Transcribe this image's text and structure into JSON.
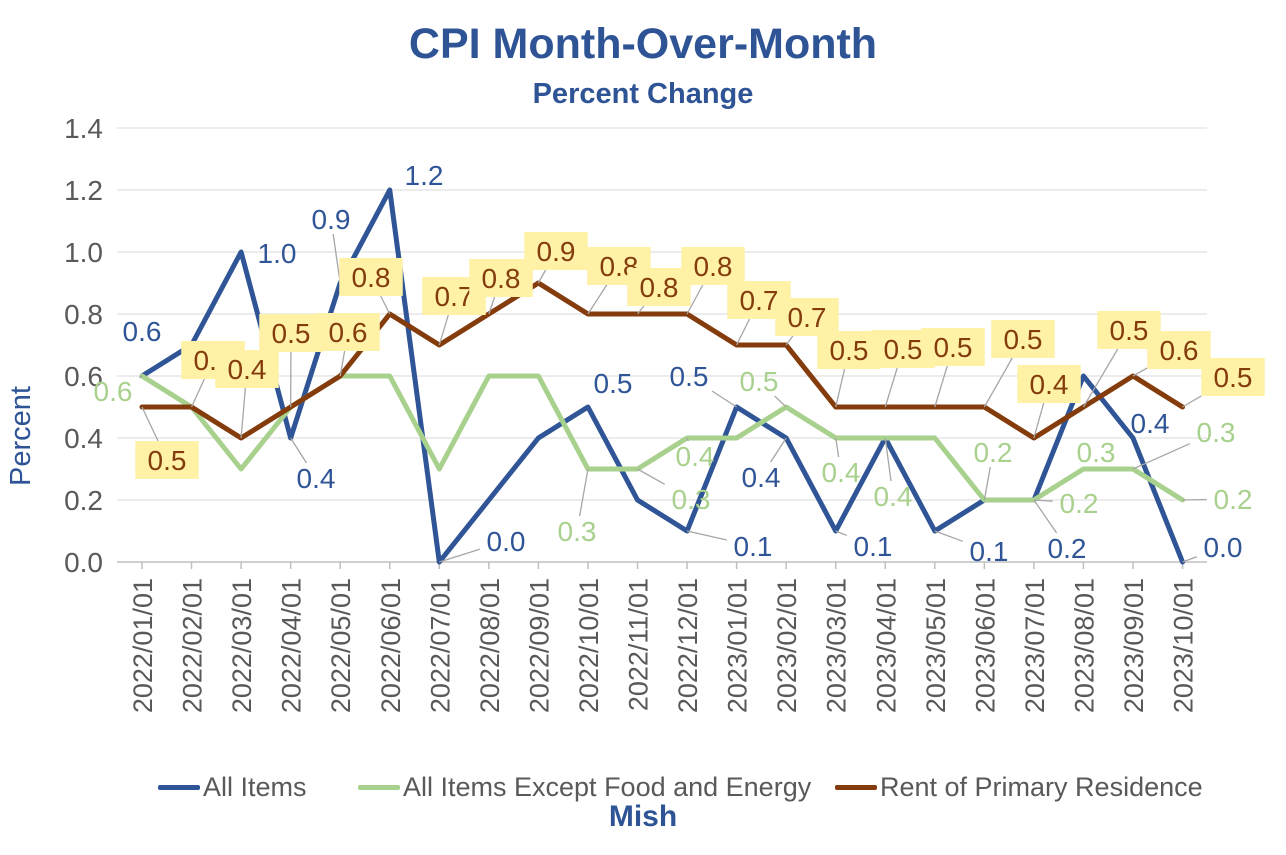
{
  "header": {
    "title": "CPI Month-Over-Month",
    "subtitle": "Percent Change"
  },
  "footer": {
    "credit": "Mish"
  },
  "colors": {
    "blue": "#2F5597",
    "green": "#A9D18E",
    "brown": "#843C0C",
    "label_bg": "#FFF2A6",
    "title": "#2E5496",
    "axis_text": "#595959",
    "grid": "#D9D9D9",
    "axis": "#BFBFBF",
    "leader": "#A6A6A6"
  },
  "chart_data": {
    "type": "line",
    "title": "CPI Month-Over-Month",
    "subtitle": "Percent Change",
    "xlabel": "",
    "ylabel": "Percent",
    "ylim": [
      0.0,
      1.4
    ],
    "grid": true,
    "legend_position": "bottom",
    "y_ticks": [
      "0.0",
      "0.2",
      "0.4",
      "0.6",
      "0.8",
      "1.0",
      "1.2",
      "1.4"
    ],
    "categories": [
      "2022/01/01",
      "2022/02/01",
      "2022/03/01",
      "2022/04/01",
      "2022/05/01",
      "2022/06/01",
      "2022/07/01",
      "2022/08/01",
      "2022/09/01",
      "2022/10/01",
      "2022/11/01",
      "2022/12/01",
      "2023/01/01",
      "2023/02/01",
      "2023/03/01",
      "2023/04/01",
      "2023/05/01",
      "2023/06/01",
      "2023/07/01",
      "2023/08/01",
      "2023/09/01",
      "2023/10/01"
    ],
    "series": [
      {
        "name": "All Items",
        "slug": "all-items",
        "color": "#2F5597",
        "values": [
          0.6,
          0.7,
          1.0,
          0.4,
          0.9,
          1.2,
          0.0,
          0.2,
          0.4,
          0.5,
          0.2,
          0.1,
          0.5,
          0.4,
          0.1,
          0.4,
          0.1,
          0.2,
          0.2,
          0.6,
          0.4,
          0.0
        ],
        "labels": [
          [
            0,
            "0.6",
            142,
            331,
            0
          ],
          [
            2,
            "1.0",
            277,
            253,
            0
          ],
          [
            3,
            "0.4",
            316,
            478,
            1
          ],
          [
            4,
            "0.9",
            331,
            219,
            1
          ],
          [
            5,
            "1.2",
            424,
            175,
            0
          ],
          [
            6,
            "0.0",
            506,
            541,
            1
          ],
          [
            9,
            "0.5",
            613,
            383,
            0
          ],
          [
            11,
            "0.1",
            753,
            546,
            1
          ],
          [
            12,
            "0.5",
            689,
            376,
            1
          ],
          [
            13,
            "0.4",
            761,
            477,
            1
          ],
          [
            14,
            "0.1",
            873,
            546,
            1
          ],
          [
            16,
            "0.1",
            989,
            551,
            1
          ],
          [
            18,
            "0.2",
            1067,
            548,
            1
          ],
          [
            20,
            "0.4",
            1150,
            423,
            1
          ],
          [
            21,
            "0.0",
            1223,
            547,
            1
          ]
        ]
      },
      {
        "name": "All Items Except Food and Energy",
        "slug": "core",
        "color": "#A9D18E",
        "values": [
          0.6,
          0.5,
          0.3,
          0.5,
          0.6,
          0.6,
          0.3,
          0.6,
          0.6,
          0.3,
          0.3,
          0.4,
          0.4,
          0.5,
          0.4,
          0.4,
          0.4,
          0.2,
          0.2,
          0.3,
          0.3,
          0.2
        ],
        "labels": [
          [
            0,
            "0.6",
            113,
            391,
            1
          ],
          [
            9,
            "0.3",
            577,
            531,
            1
          ],
          [
            10,
            "0.3",
            691,
            499,
            1
          ],
          [
            11,
            "0.4",
            695,
            456,
            1
          ],
          [
            13,
            "0.5",
            759,
            381,
            1
          ],
          [
            14,
            "0.4",
            841,
            472,
            1
          ],
          [
            15,
            "0.4",
            893,
            496,
            1
          ],
          [
            17,
            "0.2",
            993,
            452,
            1
          ],
          [
            18,
            "0.2",
            1079,
            503,
            1
          ],
          [
            19,
            "0.3",
            1096,
            452,
            0
          ],
          [
            20,
            "0.3",
            1216,
            432,
            1
          ],
          [
            21,
            "0.2",
            1233,
            499,
            1
          ]
        ]
      },
      {
        "name": "Rent of Primary Residence",
        "slug": "rent",
        "color": "#843C0C",
        "label_bg": "#FFF2A6",
        "values": [
          0.5,
          0.5,
          0.4,
          0.5,
          0.6,
          0.8,
          0.7,
          0.8,
          0.9,
          0.8,
          0.8,
          0.8,
          0.7,
          0.7,
          0.5,
          0.5,
          0.5,
          0.5,
          0.4,
          0.5,
          0.6,
          0.5
        ],
        "labels": [
          [
            0,
            "0.5",
            167,
            460,
            1
          ],
          [
            1,
            "0.5",
            213,
            360,
            1
          ],
          [
            2,
            "0.4",
            247,
            369,
            1
          ],
          [
            3,
            "0.5",
            291,
            333,
            1
          ],
          [
            4,
            "0.6",
            348,
            332,
            1
          ],
          [
            5,
            "0.8",
            371,
            277,
            1
          ],
          [
            6,
            "0.7",
            454,
            296,
            1
          ],
          [
            7,
            "0.8",
            501,
            278,
            1
          ],
          [
            8,
            "0.9",
            556,
            251,
            1
          ],
          [
            9,
            "0.8",
            619,
            266,
            1
          ],
          [
            10,
            "0.8",
            659,
            287,
            1
          ],
          [
            11,
            "0.8",
            713,
            266,
            1
          ],
          [
            12,
            "0.7",
            759,
            300,
            1
          ],
          [
            13,
            "0.7",
            807,
            317,
            1
          ],
          [
            14,
            "0.5",
            849,
            350,
            1
          ],
          [
            15,
            "0.5",
            903,
            349,
            1
          ],
          [
            16,
            "0.5",
            953,
            347,
            1
          ],
          [
            17,
            "0.5",
            1023,
            339,
            1
          ],
          [
            18,
            "0.4",
            1049,
            384,
            1
          ],
          [
            19,
            "0.5",
            1129,
            330,
            1
          ],
          [
            20,
            "0.6",
            1179,
            350,
            1
          ],
          [
            21,
            "0.5",
            1233,
            377,
            1
          ]
        ]
      }
    ]
  }
}
